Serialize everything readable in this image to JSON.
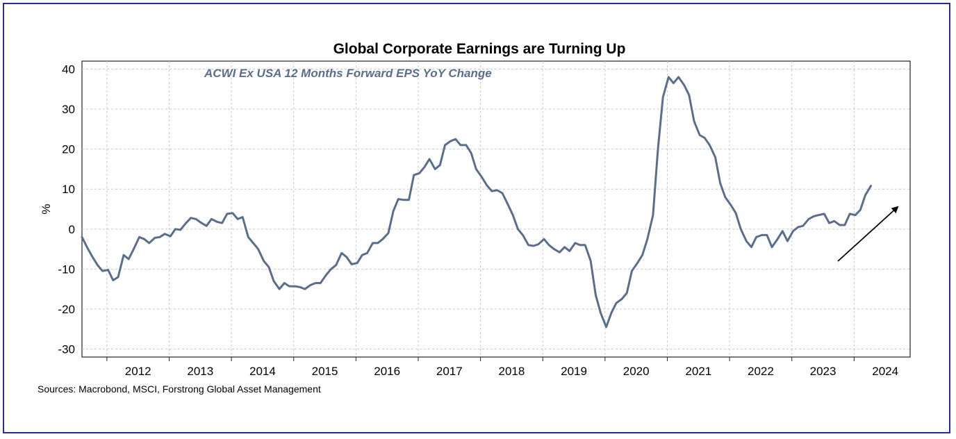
{
  "chart_data": {
    "type": "line",
    "title": "Global Corporate Earnings are Turning Up",
    "subtitle": "ACWI Ex USA 12 Months Forward EPS YoY Change",
    "ylabel": "%",
    "xlabel": "",
    "ylim": [
      -32,
      42
    ],
    "xlim": [
      2011.6,
      2024.9
    ],
    "yticks": [
      -30,
      -20,
      -10,
      0,
      10,
      20,
      30,
      40
    ],
    "xtick_labels": [
      "2012",
      "2013",
      "2014",
      "2015",
      "2016",
      "2017",
      "2018",
      "2019",
      "2020",
      "2021",
      "2022",
      "2023",
      "2024"
    ],
    "grid": true,
    "line_color": "#5a6e8c",
    "source": "Sources: Macrobond, MSCI, Forstrong Global Asset Management",
    "series": [
      {
        "x": [
          2011.6,
          2011.68,
          2011.77,
          2011.85,
          2011.93,
          2012.02,
          2012.1,
          2012.18,
          2012.27,
          2012.35,
          2012.43,
          2012.52,
          2012.6,
          2012.68,
          2012.77,
          2012.85,
          2012.93,
          2013.02,
          2013.1,
          2013.18,
          2013.27,
          2013.35,
          2013.43,
          2013.52,
          2013.6,
          2013.68,
          2013.77,
          2013.85,
          2013.93,
          2014.02,
          2014.1,
          2014.18,
          2014.27,
          2014.35,
          2014.43,
          2014.52,
          2014.6,
          2014.68,
          2014.77,
          2014.85,
          2014.93,
          2015.02,
          2015.1,
          2015.18,
          2015.27,
          2015.35,
          2015.43,
          2015.52,
          2015.6,
          2015.68,
          2015.77,
          2015.85,
          2015.93,
          2016.02,
          2016.1,
          2016.18,
          2016.27,
          2016.35,
          2016.43,
          2016.52,
          2016.6,
          2016.68,
          2016.77,
          2016.85,
          2016.93,
          2017.02,
          2017.1,
          2017.18,
          2017.27,
          2017.35,
          2017.43,
          2017.52,
          2017.6,
          2017.68,
          2017.77,
          2017.85,
          2017.93,
          2018.02,
          2018.1,
          2018.18,
          2018.27,
          2018.35,
          2018.43,
          2018.52,
          2018.6,
          2018.68,
          2018.77,
          2018.85,
          2018.93,
          2019.02,
          2019.1,
          2019.18,
          2019.27,
          2019.35,
          2019.43,
          2019.52,
          2019.6,
          2019.68,
          2019.77,
          2019.85,
          2019.93,
          2020.02,
          2020.1,
          2020.18,
          2020.27,
          2020.35,
          2020.43,
          2020.52,
          2020.6,
          2020.68,
          2020.77,
          2020.85,
          2020.93,
          2021.02,
          2021.1,
          2021.18,
          2021.27,
          2021.35,
          2021.43,
          2021.52,
          2021.6,
          2021.68,
          2021.77,
          2021.85,
          2021.93,
          2022.02,
          2022.1,
          2022.18,
          2022.27,
          2022.35,
          2022.43,
          2022.52,
          2022.6,
          2022.68,
          2022.77,
          2022.85,
          2022.93,
          2023.02,
          2023.1,
          2023.18,
          2023.27,
          2023.35,
          2023.43,
          2023.52,
          2023.6,
          2023.68,
          2023.77,
          2023.85,
          2023.93,
          2024.02,
          2024.1,
          2024.18,
          2024.27
        ],
        "values": [
          -2,
          -4.5,
          -7,
          -9,
          -10.5,
          -10.2,
          -12.8,
          -12,
          -6.5,
          -7.5,
          -5,
          -2,
          -2.5,
          -3.5,
          -2.2,
          -2.0,
          -1.2,
          -1.8,
          0,
          -0.2,
          1.5,
          2.8,
          2.5,
          1.5,
          0.8,
          2.5,
          1.8,
          1.5,
          3.8,
          4.0,
          2.5,
          3.0,
          -2.0,
          -3.5,
          -5,
          -8.0,
          -9.5,
          -13,
          -15,
          -13.5,
          -14.3,
          -14.3,
          -14.5,
          -15.0,
          -14.0,
          -13.5,
          -13.5,
          -11.5,
          -10,
          -9,
          -6,
          -7,
          -8.8,
          -8.5,
          -6.5,
          -6,
          -3.5,
          -3.5,
          -2.5,
          -1.0,
          4.5,
          7.5,
          7.3,
          7.3,
          13.5,
          14,
          15.5,
          17.5,
          15,
          16,
          21,
          22,
          22.5,
          21,
          21,
          19,
          15,
          13,
          11,
          9.5,
          9.7,
          9.0,
          6.5,
          3.5,
          0,
          -1.5,
          -4,
          -4.2,
          -3.8,
          -2.5,
          -4,
          -5,
          -5.8,
          -4.5,
          -5.5,
          -3.5,
          -4,
          -4,
          -8,
          -16.5,
          -21,
          -24.5,
          -21,
          -18.5,
          -17.5,
          -16.0,
          -10.5,
          -8.5,
          -6.5,
          -2.5,
          3.5,
          20,
          33,
          38,
          36.5,
          38,
          36,
          33.5,
          27,
          23.5,
          22.8,
          21,
          18,
          11.5,
          8,
          6,
          4,
          0,
          -3,
          -4.5,
          -2.0,
          -1.5,
          -1.5,
          -4.5,
          -2.5,
          -0.5,
          -3.0,
          -0.5,
          0.5,
          0.8,
          2.5,
          3.2,
          3.5,
          3.8,
          1.5,
          2.0,
          1.0,
          1.0,
          3.8,
          3.5,
          4.8,
          8.5,
          10.8
        ]
      }
    ]
  }
}
